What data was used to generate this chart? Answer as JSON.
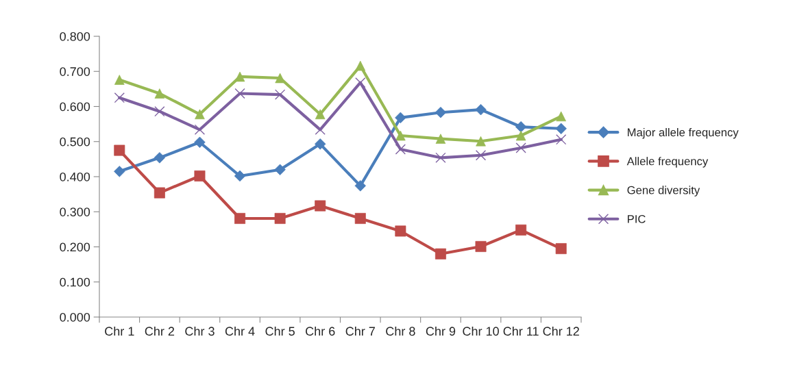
{
  "chart_data": {
    "type": "line",
    "categories": [
      "Chr 1",
      "Chr 2",
      "Chr 3",
      "Chr 4",
      "Chr 5",
      "Chr 6",
      "Chr 7",
      "Chr 8",
      "Chr 9",
      "Chr 10",
      "Chr 11",
      "Chr 12"
    ],
    "series": [
      {
        "name": "Major allele frequency",
        "color": "#4a7ebb",
        "marker": "diamond",
        "values": [
          0.415,
          0.454,
          0.498,
          0.402,
          0.42,
          0.493,
          0.374,
          0.568,
          0.583,
          0.591,
          0.542,
          0.537
        ]
      },
      {
        "name": "Allele frequency",
        "color": "#be4b48",
        "marker": "square",
        "values": [
          0.475,
          0.354,
          0.402,
          0.281,
          0.281,
          0.317,
          0.281,
          0.245,
          0.18,
          0.201,
          0.248,
          0.195
        ]
      },
      {
        "name": "Gene diversity",
        "color": "#98b954",
        "marker": "triangle",
        "values": [
          0.676,
          0.637,
          0.578,
          0.685,
          0.681,
          0.578,
          0.716,
          0.517,
          0.508,
          0.501,
          0.517,
          0.572
        ]
      },
      {
        "name": "PIC",
        "color": "#7d60a0",
        "marker": "cross",
        "values": [
          0.625,
          0.586,
          0.534,
          0.637,
          0.634,
          0.534,
          0.668,
          0.478,
          0.454,
          0.461,
          0.482,
          0.506
        ]
      }
    ],
    "ylim": [
      0,
      0.8
    ],
    "yticks": [
      {
        "value": 0,
        "label": "0.000"
      },
      {
        "value": 0.1,
        "label": "0.100"
      },
      {
        "value": 0.2,
        "label": "0.200"
      },
      {
        "value": 0.3,
        "label": "0.300"
      },
      {
        "value": 0.4,
        "label": "0.400"
      },
      {
        "value": 0.5,
        "label": "0.500"
      },
      {
        "value": 0.6,
        "label": "0.600"
      },
      {
        "value": 0.7,
        "label": "0.700"
      },
      {
        "value": 0.8,
        "label": "0.800"
      }
    ],
    "grid": false,
    "legend": "right",
    "line_style": "solid"
  }
}
